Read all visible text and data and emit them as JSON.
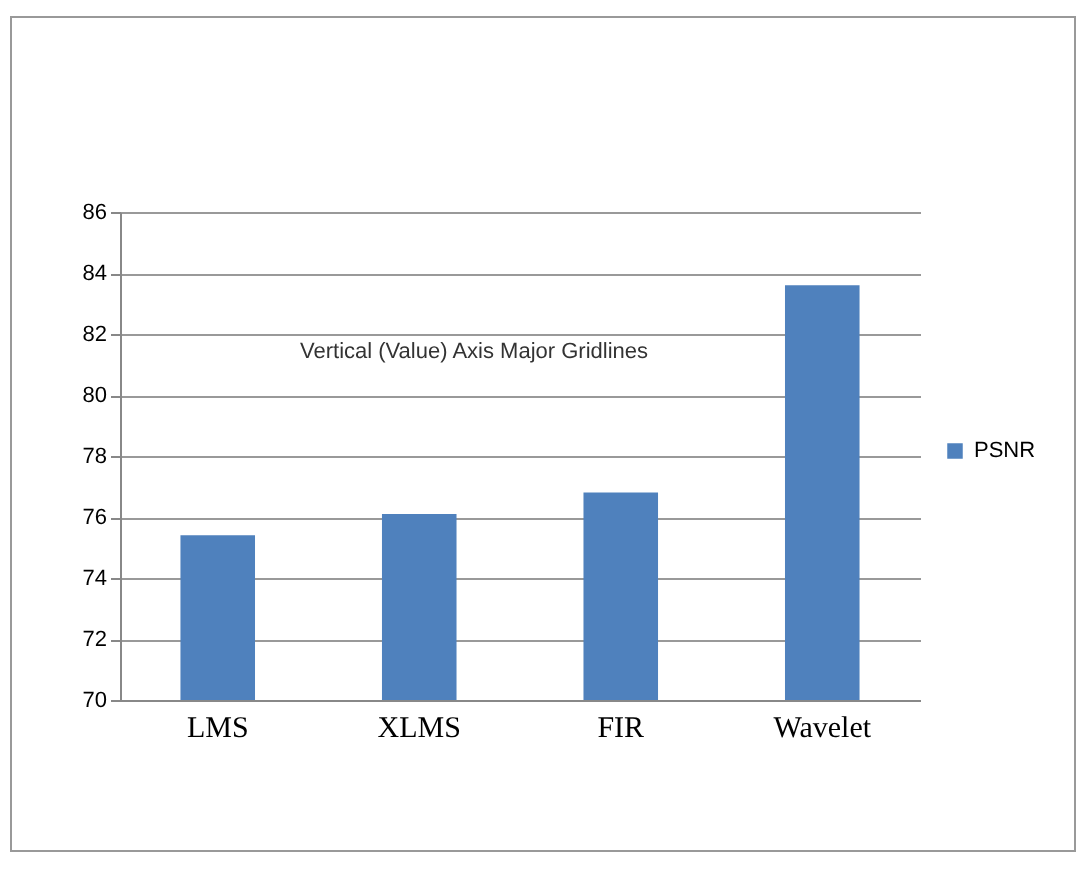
{
  "chart_data": {
    "type": "bar",
    "categories": [
      "LMS",
      "XLMS",
      "FIR",
      "Wavelet"
    ],
    "series": [
      {
        "name": "PSNR",
        "color": "#4f81bd",
        "values": [
          75.4,
          76.1,
          76.8,
          83.6
        ]
      }
    ],
    "ylim": [
      70,
      86
    ],
    "yticks": [
      70,
      72,
      74,
      76,
      78,
      80,
      82,
      84,
      86
    ],
    "grid": "y",
    "legend": "right",
    "annotations": [
      "Vertical (Value) Axis Major Gridlines"
    ]
  }
}
